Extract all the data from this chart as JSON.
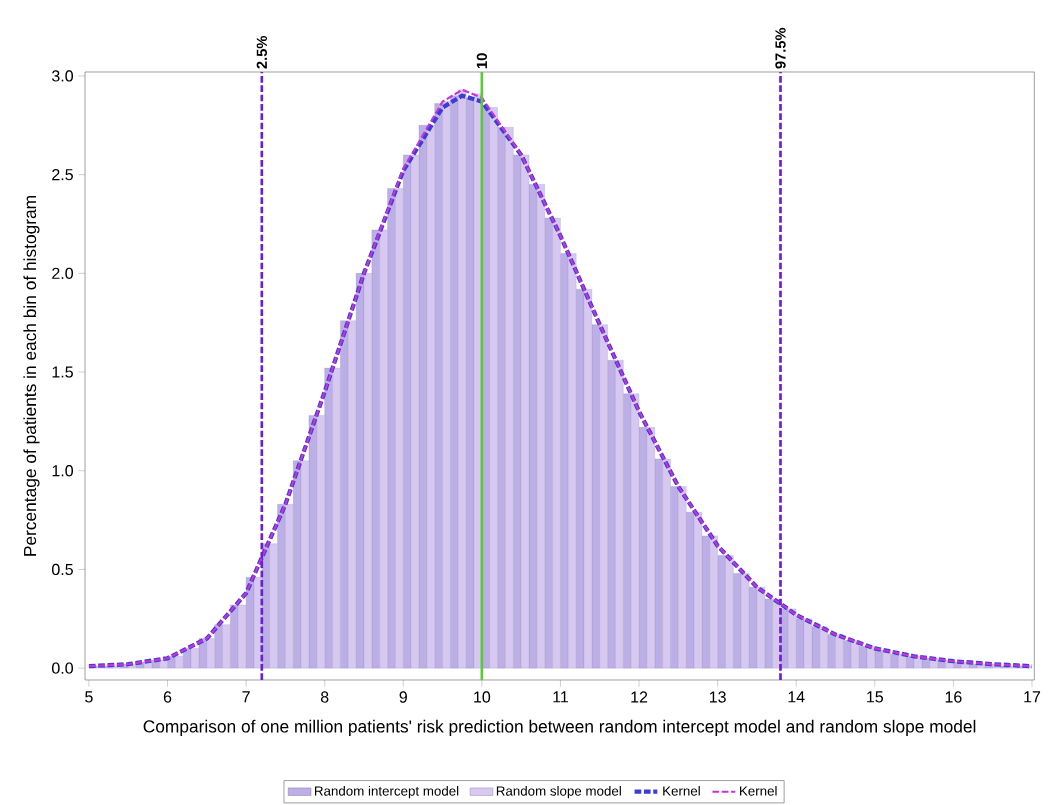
{
  "chart_data": {
    "type": "histogram",
    "xlabel": "Comparison of one million patients' risk prediction between random intercept model and random slope model",
    "ylabel": "Percentage of patients in each bin of histogram",
    "bins": [
      5.0,
      5.2,
      5.4,
      5.6,
      5.8,
      6.0,
      6.2,
      6.4,
      6.6,
      6.8,
      7.0,
      7.2,
      7.4,
      7.6,
      7.8,
      8.0,
      8.2,
      8.4,
      8.6,
      8.8,
      9.0,
      9.2,
      9.4,
      9.6,
      9.8,
      10.0,
      10.2,
      10.4,
      10.6,
      10.8,
      11.0,
      11.2,
      11.4,
      11.6,
      11.8,
      12.0,
      12.2,
      12.4,
      12.6,
      12.8,
      13.0,
      13.2,
      13.4,
      13.6,
      13.8,
      14.0,
      14.2,
      14.4,
      14.6,
      14.8,
      15.0,
      15.2,
      15.4,
      15.6,
      15.8,
      16.0,
      16.2,
      16.4,
      16.6,
      16.8,
      17.0
    ],
    "series": [
      {
        "name": "Random intercept model",
        "color": "#bcaee6",
        "values": [
          0.01,
          0.01,
          0.02,
          0.03,
          0.04,
          0.06,
          0.1,
          0.15,
          0.22,
          0.32,
          0.46,
          0.63,
          0.83,
          1.05,
          1.28,
          1.52,
          1.76,
          2.0,
          2.22,
          2.43,
          2.6,
          2.75,
          2.86,
          2.9,
          2.89,
          2.84,
          2.74,
          2.6,
          2.45,
          2.28,
          2.1,
          1.92,
          1.74,
          1.56,
          1.39,
          1.22,
          1.06,
          0.92,
          0.79,
          0.67,
          0.57,
          0.48,
          0.41,
          0.35,
          0.3,
          0.25,
          0.21,
          0.17,
          0.14,
          0.11,
          0.09,
          0.07,
          0.06,
          0.05,
          0.04,
          0.03,
          0.02,
          0.02,
          0.01,
          0.01
        ]
      },
      {
        "name": "Random slope model",
        "color": "#d6c8f0",
        "values": [
          0.01,
          0.01,
          0.02,
          0.03,
          0.04,
          0.06,
          0.1,
          0.15,
          0.22,
          0.32,
          0.46,
          0.63,
          0.83,
          1.05,
          1.28,
          1.52,
          1.76,
          2.0,
          2.22,
          2.43,
          2.6,
          2.75,
          2.87,
          2.93,
          2.91,
          2.84,
          2.74,
          2.6,
          2.45,
          2.28,
          2.1,
          1.92,
          1.74,
          1.56,
          1.39,
          1.22,
          1.06,
          0.92,
          0.79,
          0.67,
          0.57,
          0.48,
          0.41,
          0.35,
          0.3,
          0.25,
          0.21,
          0.17,
          0.14,
          0.11,
          0.09,
          0.07,
          0.06,
          0.05,
          0.04,
          0.03,
          0.02,
          0.02,
          0.01,
          0.01
        ]
      },
      {
        "name": "Kernel",
        "type": "line",
        "color": "#3c3cd6",
        "line_style": "dashed",
        "x": [
          5,
          5.5,
          6,
          6.5,
          7,
          7.5,
          8,
          8.5,
          9,
          9.5,
          9.75,
          10,
          10.5,
          11,
          11.5,
          12,
          12.5,
          13,
          13.5,
          14,
          14.5,
          15,
          15.5,
          16,
          16.5,
          17
        ],
        "values": [
          0.01,
          0.02,
          0.05,
          0.15,
          0.38,
          0.83,
          1.4,
          2.0,
          2.52,
          2.84,
          2.9,
          2.87,
          2.6,
          2.19,
          1.74,
          1.3,
          0.92,
          0.62,
          0.41,
          0.27,
          0.17,
          0.1,
          0.06,
          0.035,
          0.02,
          0.01
        ]
      },
      {
        "name": "Kernel",
        "type": "line",
        "color": "#c832d8",
        "line_style": "dashed",
        "x": [
          5,
          5.5,
          6,
          6.5,
          7,
          7.5,
          8,
          8.5,
          9,
          9.5,
          9.75,
          10,
          10.5,
          11,
          11.5,
          12,
          12.5,
          13,
          13.5,
          14,
          14.5,
          15,
          15.5,
          16,
          16.5,
          17
        ],
        "values": [
          0.01,
          0.02,
          0.05,
          0.15,
          0.38,
          0.83,
          1.4,
          2.0,
          2.53,
          2.87,
          2.93,
          2.89,
          2.6,
          2.19,
          1.74,
          1.3,
          0.92,
          0.62,
          0.41,
          0.27,
          0.17,
          0.1,
          0.06,
          0.035,
          0.02,
          0.01
        ]
      }
    ],
    "xlim": [
      4.95,
      17.03
    ],
    "xticks": [
      5,
      6,
      7,
      8,
      9,
      10,
      11,
      12,
      13,
      14,
      15,
      16,
      17
    ],
    "ylim": [
      -0.06,
      3.02
    ],
    "yticks": [
      {
        "value": 0,
        "label": "0.0"
      },
      {
        "value": 0.5,
        "label": "0.5"
      },
      {
        "value": 1,
        "label": "1.0"
      },
      {
        "value": 1.5,
        "label": "1.5"
      },
      {
        "value": 2,
        "label": "2.0"
      },
      {
        "value": 2.5,
        "label": "2.5"
      },
      {
        "value": 3,
        "label": "3.0"
      }
    ],
    "ref_lines": [
      {
        "axis": "x",
        "value": 7.2,
        "color": "#6a1fd0",
        "line_style": "dashed"
      },
      {
        "axis": "x",
        "value": 10,
        "label": "10",
        "color": "#5cc83c",
        "line_style": "solid"
      },
      {
        "axis": "x",
        "value": 13.8,
        "color": "#6a1fd0",
        "line_style": "dashed"
      }
    ],
    "annotations": [
      {
        "text": "2.5%",
        "x": 7.2,
        "y": 3.02
      },
      {
        "text": "97.5%",
        "x": 13.8,
        "y": 3.02
      }
    ],
    "grid": false,
    "legend": "bottom",
    "marker": "none"
  }
}
